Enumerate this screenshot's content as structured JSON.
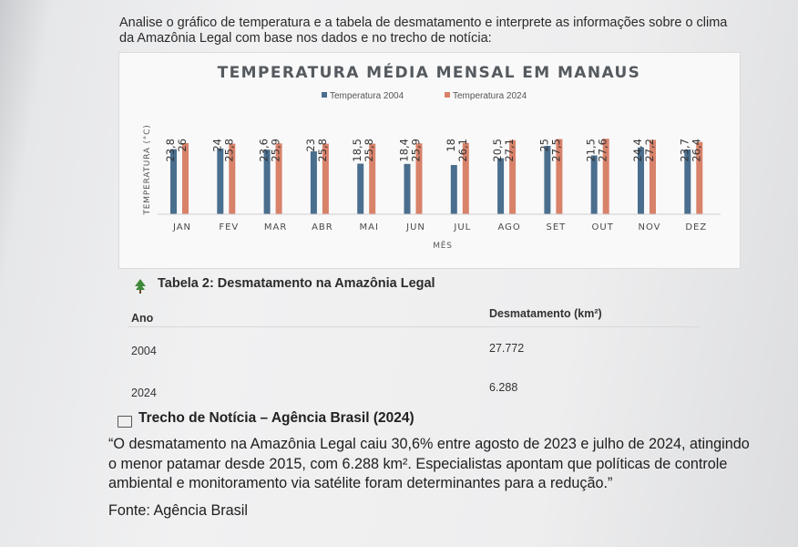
{
  "intro_text": "Analise o gráfico de temperatura e a tabela de desmatamento e interprete as informações sobre o clima da Amazônia Legal com base nos dados e no trecho de notícia:",
  "chart_data": {
    "type": "bar",
    "title": "TEMPERATURA MÉDIA MENSAL EM MANAUS",
    "xlabel": "MÊS",
    "ylabel": "TEMPERATURA (°C)",
    "categories": [
      "JAN",
      "FEV",
      "MAR",
      "ABR",
      "MAI",
      "JUN",
      "JUL",
      "AGO",
      "SET",
      "OUT",
      "NOV",
      "DEZ"
    ],
    "series": [
      {
        "name": "Temperatura 2004",
        "color": "#4a6e8e",
        "labels": [
          "23,8",
          "24",
          "23,6",
          "23",
          "18,5",
          "18,4",
          "18",
          "20,5",
          "25",
          "21,5",
          "24,4",
          "23,7"
        ],
        "values": [
          23.8,
          24,
          23.6,
          23,
          18.5,
          18.4,
          18,
          20.5,
          25,
          21.5,
          24.4,
          23.7
        ]
      },
      {
        "name": "Temperatura 2024",
        "color": "#d8826a",
        "labels": [
          "26",
          "25,8",
          "25,9",
          "25,8",
          "25,8",
          "25,9",
          "26,1",
          "27,1",
          "27,5",
          "27,6",
          "27,2",
          "26,4"
        ],
        "values": [
          26,
          25.8,
          25.9,
          25.8,
          25.8,
          25.9,
          26.1,
          27.1,
          27.5,
          27.6,
          27.2,
          26.4
        ]
      }
    ],
    "legend_position": "top-center",
    "grid": false
  },
  "table": {
    "title": "Tabela 2: Desmatamento na Amazônia Legal",
    "columns": [
      "Ano",
      "Desmatamento (km²)"
    ],
    "rows": [
      {
        "ano": "2004",
        "valor": "27.772"
      },
      {
        "ano": "2024",
        "valor": "6.288"
      }
    ]
  },
  "news": {
    "title": "Trecho de Notícia – Agência Brasil (2024)",
    "quote": "“O desmatamento na Amazônia Legal caiu 30,6% entre agosto de 2023 e julho de 2024, atingindo o menor patamar desde 2015, com 6.288 km². Especialistas apontam que políticas de controle ambiental e monitoramento via satélite foram determinantes para a redução.”",
    "source": "Fonte: Agência Brasil"
  }
}
